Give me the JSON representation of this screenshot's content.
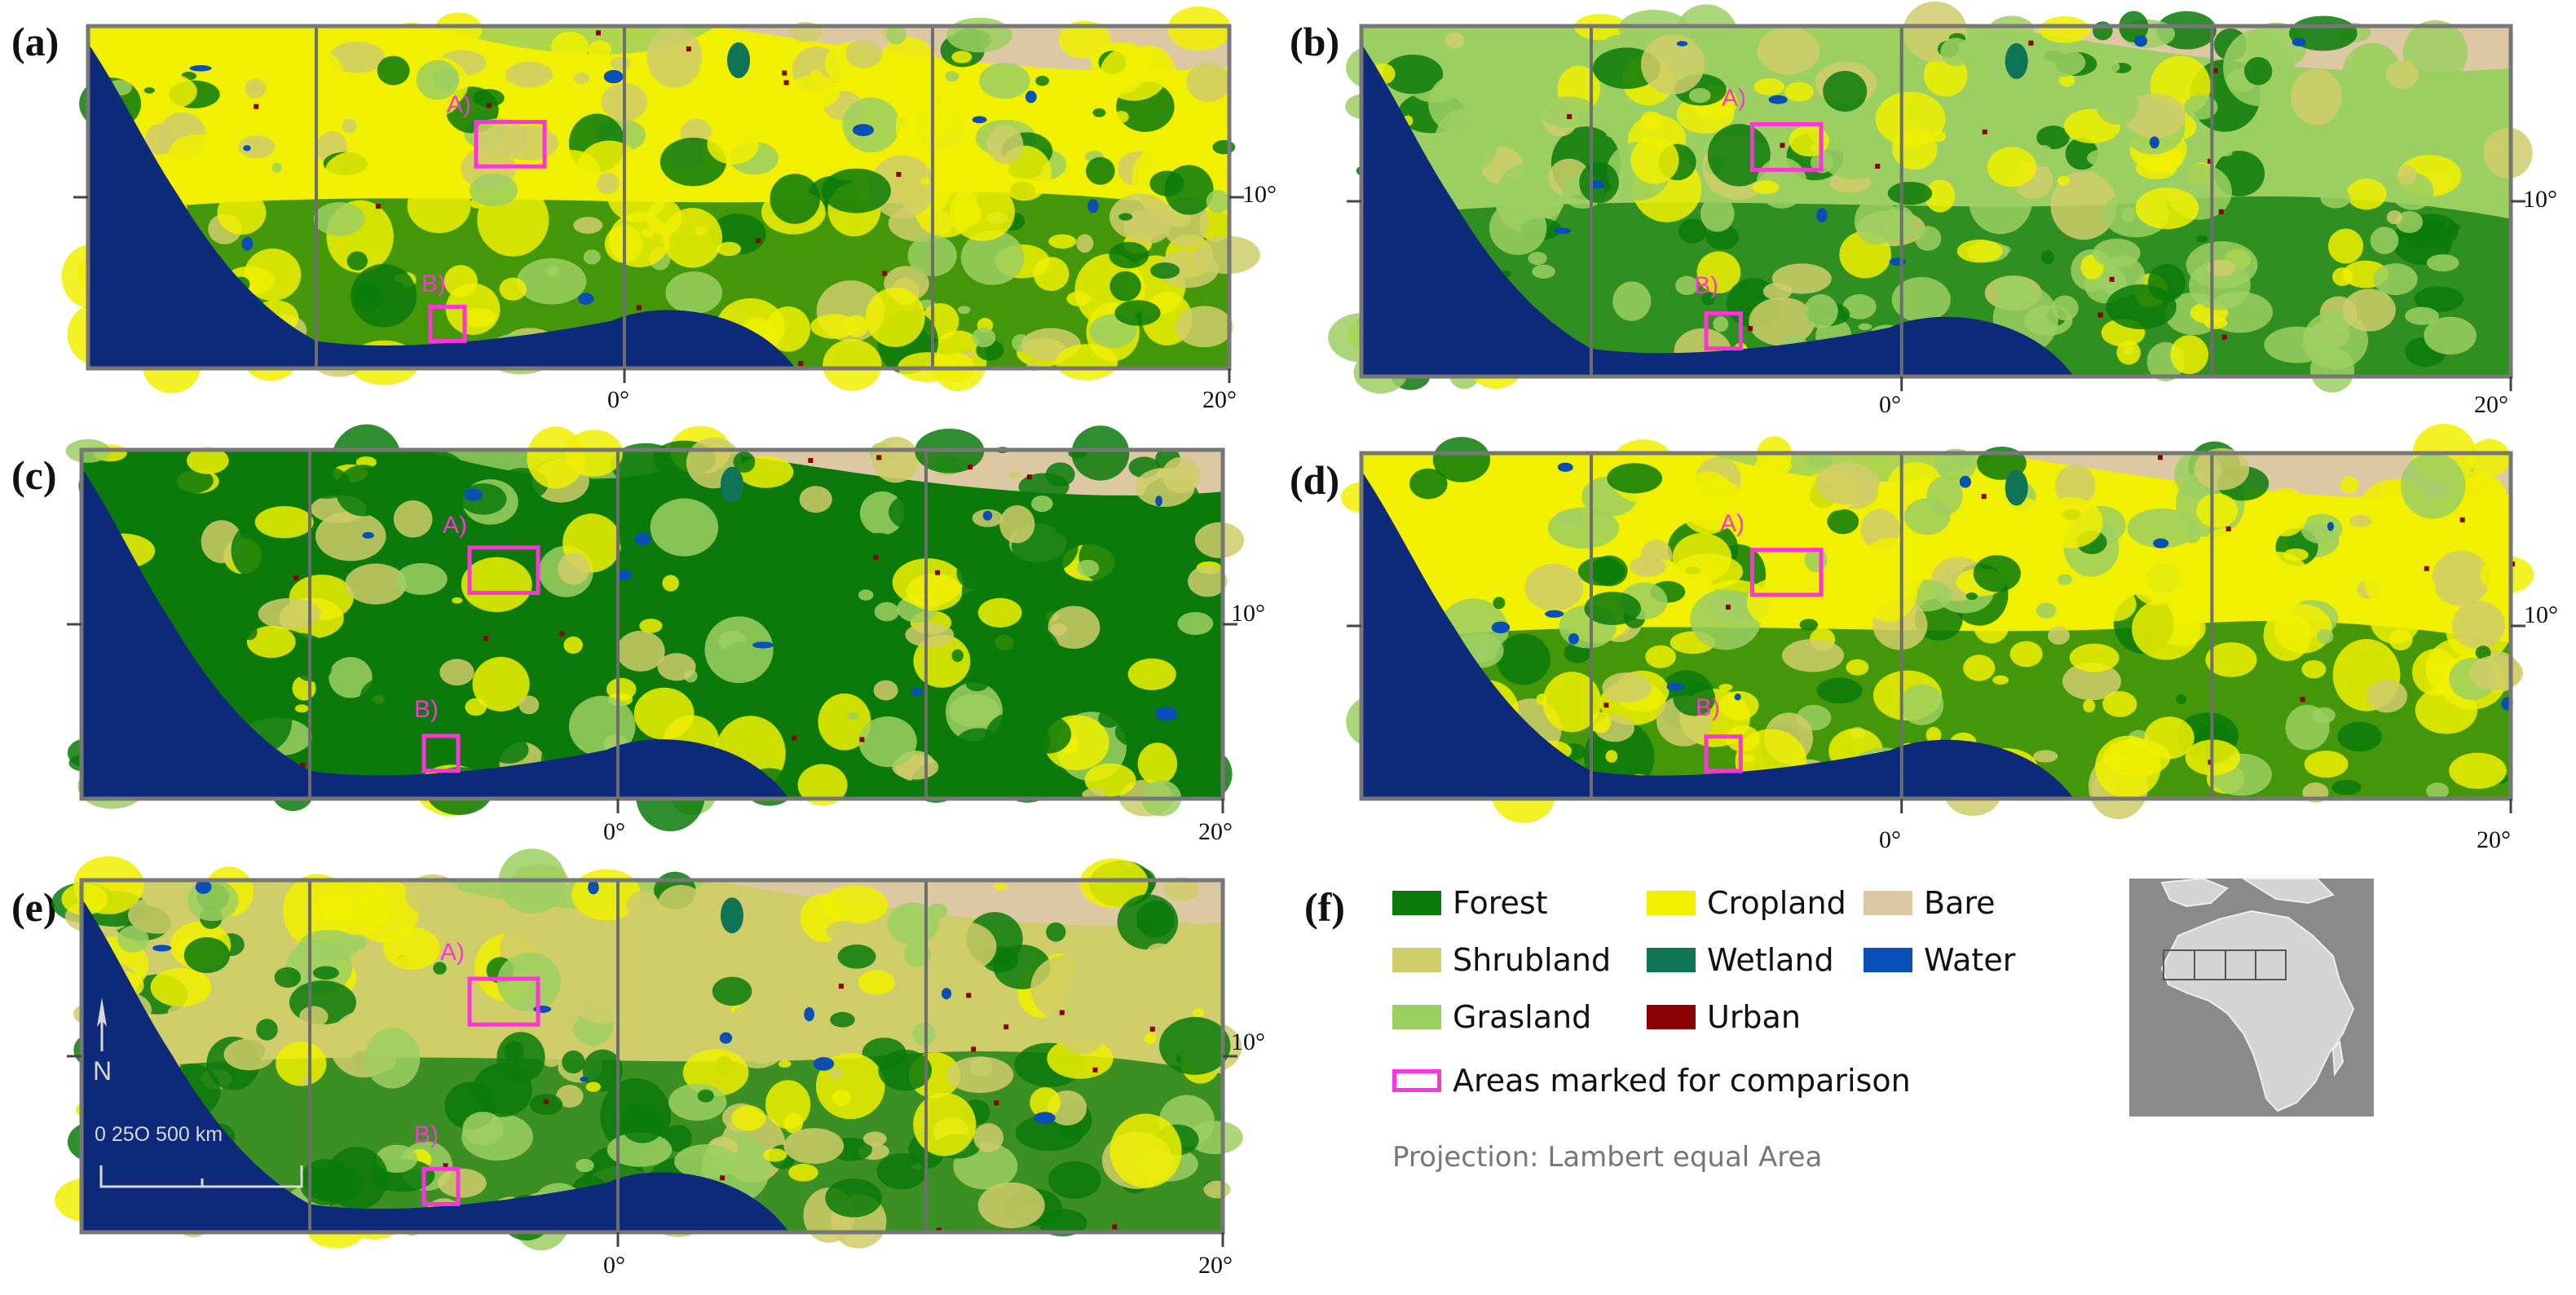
{
  "colors": {
    "forest": "#0b7a0b",
    "cropland": "#f0f000",
    "bare": "#dcc9a4",
    "shrubland": "#cfcd6a",
    "wetland": "#0f7355",
    "water": "#0a4fb5",
    "grasland": "#9ccf62",
    "urban": "#8b0000",
    "ocean": "#0e2a7a",
    "marker": "#ff33dd",
    "inset_bg": "#8a8a8a",
    "inset_land": "#d4d4d4"
  },
  "panels": [
    {
      "id": "a",
      "label": "(a)",
      "marker_a": "A)",
      "marker_b": "B)",
      "tick_lon_0": "0°",
      "tick_lon_20": "20°",
      "tick_lat_10": "10°",
      "dominant": "cropland"
    },
    {
      "id": "b",
      "label": "(b)",
      "marker_a": "A)",
      "marker_b": "B)",
      "tick_lon_0": "0°",
      "tick_lon_20": "20°",
      "tick_lat_10": "10°",
      "dominant": "grasland"
    },
    {
      "id": "c",
      "label": "(c)",
      "marker_a": "A)",
      "marker_b": "B)",
      "tick_lon_0": "0°",
      "tick_lon_20": "20°",
      "tick_lat_10": "10°",
      "dominant": "forest"
    },
    {
      "id": "d",
      "label": "(d)",
      "marker_a": "A)",
      "marker_b": "B)",
      "tick_lon_0": "0°",
      "tick_lon_20": "20°",
      "tick_lat_10": "10°",
      "dominant": "cropland"
    },
    {
      "id": "e",
      "label": "(e)",
      "marker_a": "A)",
      "marker_b": "B)",
      "tick_lon_0": "0°",
      "tick_lon_20": "20°",
      "tick_lat_10": "10°",
      "dominant": "shrubland"
    }
  ],
  "scale_bar": {
    "ticks": "0    25O   500 km",
    "north_label": "N"
  },
  "legend": {
    "label": "(f)",
    "items": [
      {
        "name": "Forest",
        "color_key": "forest"
      },
      {
        "name": "Cropland",
        "color_key": "cropland"
      },
      {
        "name": "Bare",
        "color_key": "bare"
      },
      {
        "name": "Shrubland",
        "color_key": "shrubland"
      },
      {
        "name": "Wetland",
        "color_key": "wetland"
      },
      {
        "name": "Water",
        "color_key": "water"
      },
      {
        "name": "Grasland",
        "color_key": "grasland"
      },
      {
        "name": "Urban",
        "color_key": "urban"
      }
    ],
    "marker_note": "Areas marked for comparison",
    "projection": "Projection: Lambert equal Area"
  }
}
